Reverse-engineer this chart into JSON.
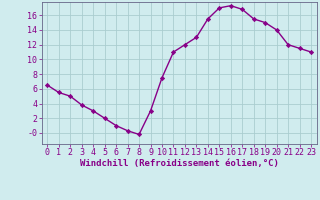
{
  "x": [
    0,
    1,
    2,
    3,
    4,
    5,
    6,
    7,
    8,
    9,
    10,
    11,
    12,
    13,
    14,
    15,
    16,
    17,
    18,
    19,
    20,
    21,
    22,
    23
  ],
  "y": [
    6.5,
    5.5,
    5.0,
    3.8,
    3.0,
    2.0,
    1.0,
    0.3,
    -0.2,
    3.0,
    7.5,
    11.0,
    12.0,
    13.0,
    15.5,
    17.0,
    17.3,
    16.8,
    15.5,
    15.0,
    14.0,
    12.0,
    11.5,
    11.0
  ],
  "line_color": "#880088",
  "marker": "D",
  "markersize": 2.2,
  "linewidth": 1.0,
  "bg_color": "#d0ecee",
  "grid_color": "#aacdd0",
  "tick_color": "#880088",
  "label_color": "#880088",
  "xlabel": "Windchill (Refroidissement éolien,°C)",
  "ytick_values": [
    0,
    2,
    4,
    6,
    8,
    10,
    12,
    14,
    16
  ],
  "ytick_labels": [
    "-0",
    "2",
    "4",
    "6",
    "8",
    "10",
    "12",
    "14",
    "16"
  ],
  "ylim": [
    -1.5,
    17.8
  ],
  "xlim": [
    -0.5,
    23.5
  ],
  "xlabel_fontsize": 6.5,
  "tick_fontsize": 6.0
}
